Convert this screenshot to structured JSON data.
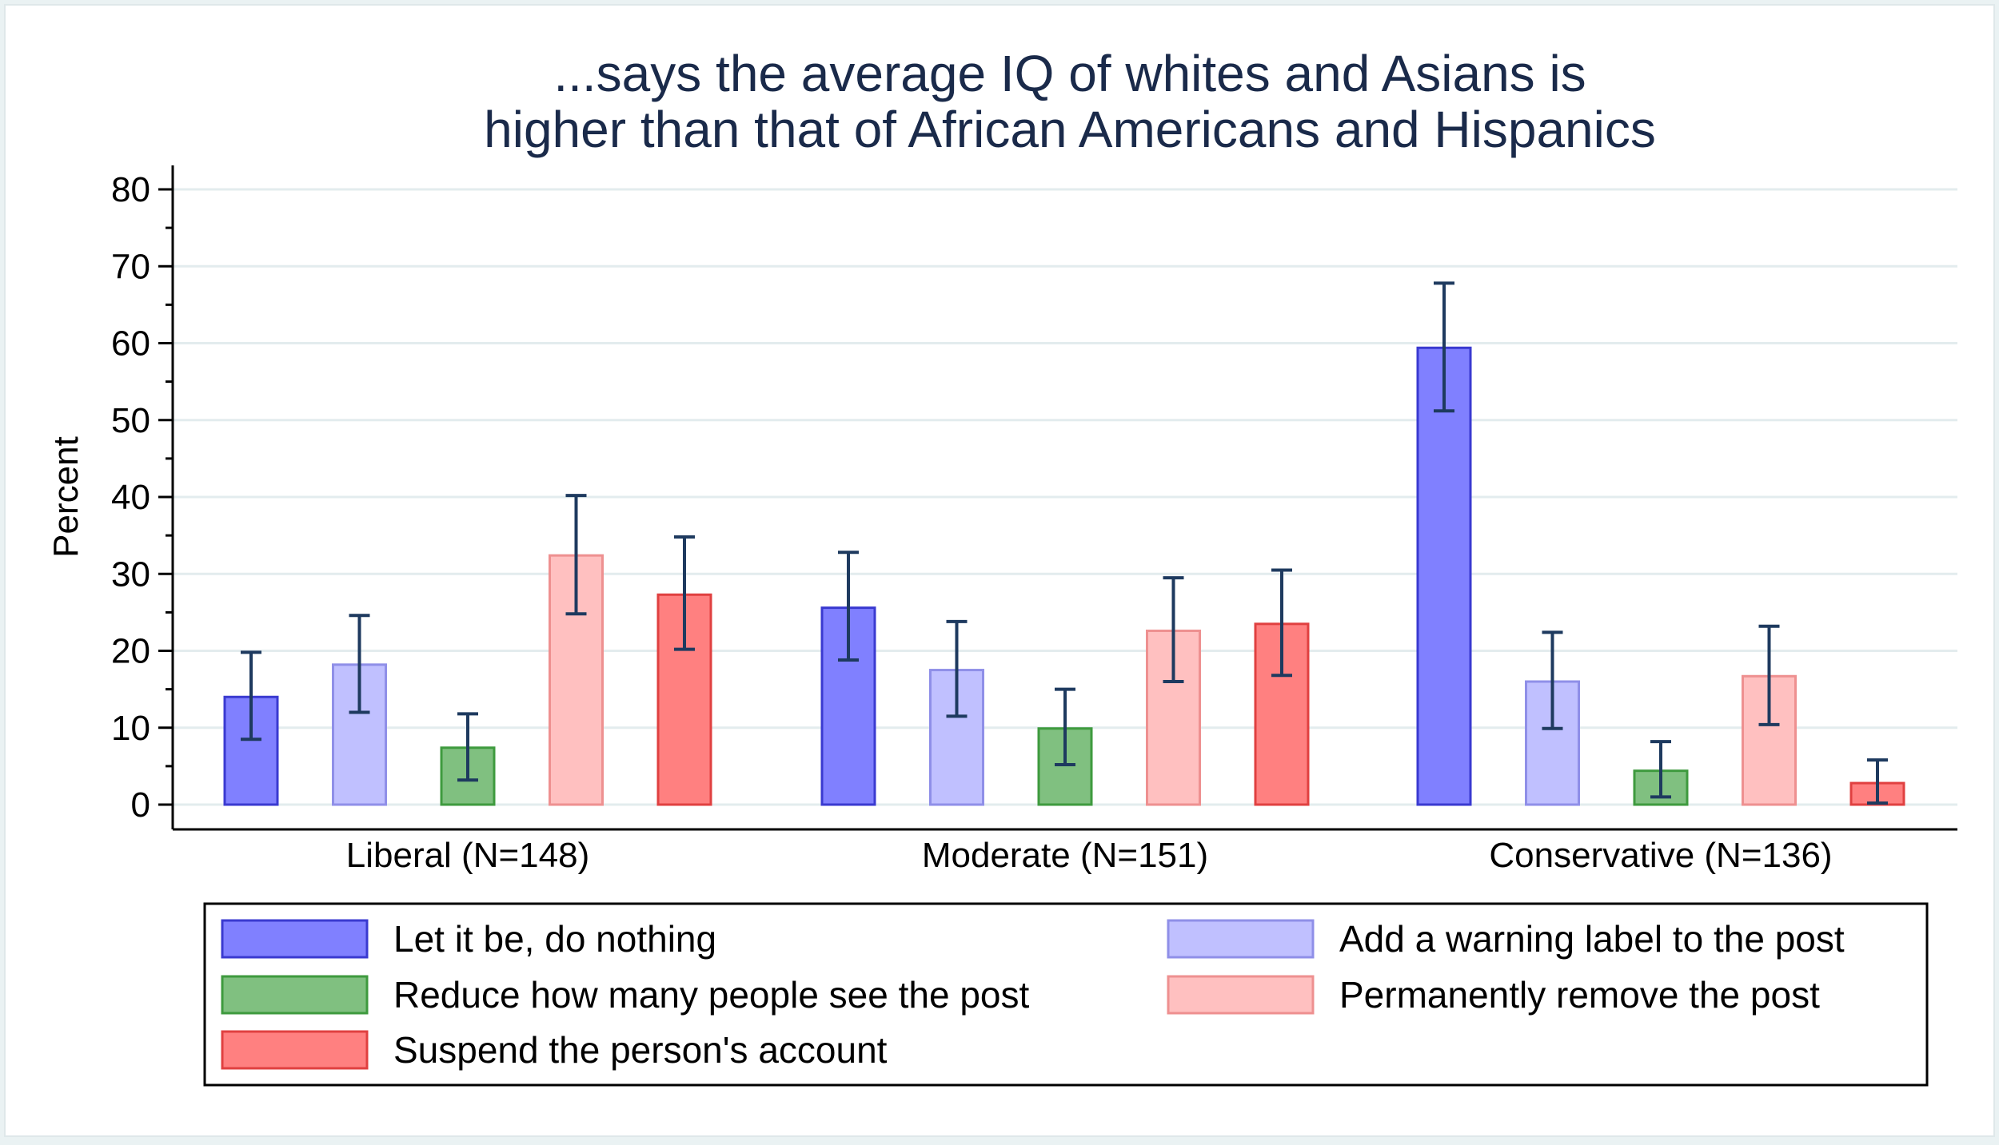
{
  "chart_data": {
    "type": "bar",
    "title_lines": [
      "...says the average IQ of whites and Asians is",
      "higher than that of African Americans and Hispanics"
    ],
    "xlabel": "",
    "ylabel": "Percent",
    "ylim": [
      0,
      80
    ],
    "yticks": [
      0,
      10,
      20,
      30,
      40,
      50,
      60,
      70,
      80
    ],
    "categories": [
      "Liberal (N=148)",
      "Moderate (N=151)",
      "Conservative (N=136)"
    ],
    "grid": true,
    "legend_position": "bottom",
    "error_bars": true,
    "series": [
      {
        "name": "Let it be, do nothing",
        "color": "#8080ff",
        "stroke": "#3a3ad0",
        "values": [
          14,
          25.6,
          59.4
        ],
        "ci_low": [
          8.5,
          18.8,
          51.2
        ],
        "ci_high": [
          19.8,
          32.8,
          67.8
        ]
      },
      {
        "name": "Add a warning label to the post",
        "color": "#c0c0ff",
        "stroke": "#8f8fe8",
        "values": [
          18.2,
          17.5,
          16
        ],
        "ci_low": [
          12,
          11.5,
          9.9
        ],
        "ci_high": [
          24.6,
          23.8,
          22.4
        ]
      },
      {
        "name": "Reduce how many people see the post",
        "color": "#80c080",
        "stroke": "#3e9a3e",
        "values": [
          7.4,
          9.9,
          4.4
        ],
        "ci_low": [
          3.2,
          5.2,
          1
        ],
        "ci_high": [
          11.8,
          15,
          8.2
        ]
      },
      {
        "name": "Permanently remove the post",
        "color": "#ffc0c0",
        "stroke": "#ee9090",
        "values": [
          32.4,
          22.6,
          16.7
        ],
        "ci_low": [
          24.8,
          16,
          10.4
        ],
        "ci_high": [
          40.2,
          29.5,
          23.2
        ]
      },
      {
        "name": "Suspend the person's account",
        "color": "#ff8080",
        "stroke": "#e04040",
        "values": [
          27.3,
          23.5,
          2.8
        ],
        "ci_low": [
          20.2,
          16.8,
          0.2
        ],
        "ci_high": [
          34.8,
          30.5,
          5.8
        ]
      }
    ]
  }
}
